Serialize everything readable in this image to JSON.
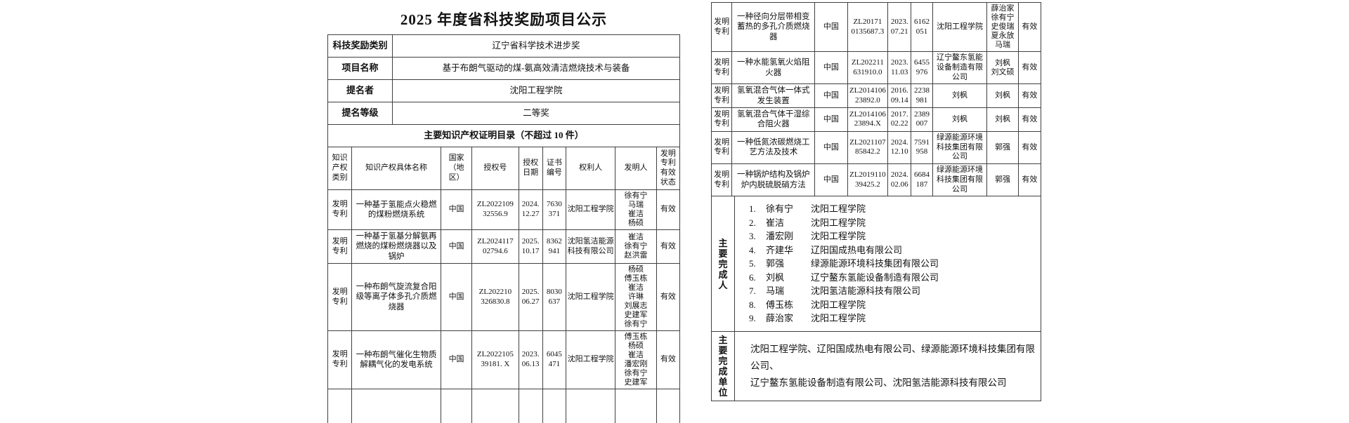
{
  "doc": {
    "title": "2025 年度省科技奖励项目公示"
  },
  "left": {
    "info_rows": [
      {
        "label": "科技奖励类别",
        "value": "辽宁省科学技术进步奖"
      },
      {
        "label": "项目名称",
        "value": "基于布朗气驱动的煤-氨高效清洁燃烧技术与装备"
      },
      {
        "label": "提名者",
        "value": "沈阳工程学院"
      },
      {
        "label": "提名等级",
        "value": "二等奖"
      }
    ],
    "section_title": "主要知识产权证明目录（不超过 10 件）",
    "col_headers": [
      [
        "知识",
        "产权",
        "类别"
      ],
      "知识产权具体名称",
      [
        "国家",
        "（地",
        "区）"
      ],
      "授权号",
      [
        "授权",
        "日期"
      ],
      [
        "证书",
        "编号"
      ],
      "权利人",
      "发明人",
      [
        "发明",
        "专利",
        "有效",
        "状态"
      ]
    ],
    "rows": [
      {
        "type": [
          "发明",
          "专利"
        ],
        "name": "一种基于氢能点火稳燃的煤粉燃烧系统",
        "country": "中国",
        "number": [
          "ZL2022109",
          "32556.9"
        ],
        "date": [
          "2024.",
          "12.27"
        ],
        "cert": [
          "7630",
          "371"
        ],
        "owner": "沈阳工程学院",
        "inventors": [
          "徐有宁",
          "马瑞",
          "崔洁",
          "杨硕"
        ],
        "status": "有效"
      },
      {
        "type": [
          "发明",
          "专利"
        ],
        "name": "一种基于氢基分解氨再燃烧的煤粉燃烧器以及锅炉",
        "country": "中国",
        "number": [
          "ZL2024117",
          "02794.6"
        ],
        "date": [
          "2025.",
          "10.17"
        ],
        "cert": [
          "8362",
          "941"
        ],
        "owner": "沈阳氢洁能源科技有限公司",
        "inventors": [
          "崔洁",
          "徐有宁",
          "赵洪雷"
        ],
        "status": "有效"
      },
      {
        "type": [
          "发明",
          "专利"
        ],
        "name": "一种布朗气旋流复合阳级等离子体多孔介质燃烧器",
        "country": "中国",
        "number": [
          "ZL202210",
          "326830.8"
        ],
        "date": [
          "2025.",
          "06.27"
        ],
        "cert": [
          "8030",
          "637"
        ],
        "owner": "沈阳工程学院",
        "inventors": [
          "杨硕",
          "傅玉栋",
          "崔洁",
          "许琳",
          "刘展志",
          "史建军",
          "徐有宁"
        ],
        "status": "有效"
      },
      {
        "type": [
          "发明",
          "专利"
        ],
        "name": "一种布朗气催化生物质解耦气化的发电系统",
        "country": "中国",
        "number": [
          "ZL2022105",
          "39181. X"
        ],
        "date": [
          "2023.",
          "06.13"
        ],
        "cert": [
          "6045",
          "471"
        ],
        "owner": "沈阳工程学院",
        "inventors": [
          "傅玉栋",
          "杨硕",
          "崔洁",
          "潘宏刚",
          "徐有宁",
          "史建军"
        ],
        "status": "有效"
      }
    ]
  },
  "right": {
    "rows": [
      {
        "type": [
          "发明",
          "专利"
        ],
        "name": "一种径向分层带相变蓄热的多孔介质燃烧器",
        "country": "中国",
        "number": [
          "ZL20171",
          "0135687.3"
        ],
        "date": [
          "2023.",
          "07.21"
        ],
        "cert": [
          "6162",
          "051"
        ],
        "owner": "沈阳工程学院",
        "inventors": [
          "薛治家",
          "徐有宁",
          "史俊瑞",
          "夏永放",
          "马瑞"
        ],
        "status": "有效"
      },
      {
        "type": [
          "发明",
          "专利"
        ],
        "name": "一种水能氢氧火焰阻火器",
        "country": "中国",
        "number": [
          "ZL202211",
          "631910.0"
        ],
        "date": [
          "2023.",
          "11.03"
        ],
        "cert": [
          "6455",
          "976"
        ],
        "owner": "辽宁鳌东氢能设备制造有限公司",
        "inventors": [
          "刘枫",
          "刘文硕"
        ],
        "status": "有效"
      },
      {
        "type": [
          "发明",
          "专利"
        ],
        "name": "氢氧混合气体一体式发生装置",
        "country": "中国",
        "number": [
          "ZL2014106",
          "23892.0"
        ],
        "date": [
          "2016.",
          "09.14"
        ],
        "cert": [
          "2238",
          "981"
        ],
        "owner": "刘枫",
        "inventors": [
          "刘枫"
        ],
        "status": "有效"
      },
      {
        "type": [
          "发明",
          "专利"
        ],
        "name": "氢氧混合气体干湿综合阻火器",
        "country": "中国",
        "number": [
          "ZL2014106",
          "23894.X"
        ],
        "date": [
          "2017.",
          "02.22"
        ],
        "cert": [
          "2389",
          "007"
        ],
        "owner": "刘枫",
        "inventors": [
          "刘枫"
        ],
        "status": "有效"
      },
      {
        "type": [
          "发明",
          "专利"
        ],
        "name": "一种低氮浓碳燃烧工艺方法及技术",
        "country": "中国",
        "number": [
          "ZL2021107",
          "85842.2"
        ],
        "date": [
          "2024.",
          "12.10"
        ],
        "cert": [
          "7591",
          "958"
        ],
        "owner": "绿源能源环境科技集团有限公司",
        "inventors": [
          "郭强"
        ],
        "status": "有效"
      },
      {
        "type": [
          "发明",
          "专利"
        ],
        "name": "一种锅炉结构及锅炉炉内脱硫脱硝方法",
        "country": "中国",
        "number": [
          "ZL2019110",
          "39425.2"
        ],
        "date": [
          "2024.",
          "02.06"
        ],
        "cert": [
          "6684",
          "187"
        ],
        "owner": "绿源能源环境科技集团有限公司",
        "inventors": [
          "郭强"
        ],
        "status": "有效"
      }
    ],
    "completers": {
      "label": [
        "主",
        "要",
        "完",
        "成",
        "人"
      ],
      "items": [
        {
          "num": "1.",
          "name": "徐有宁",
          "org": "沈阳工程学院"
        },
        {
          "num": "2.",
          "name": "崔洁",
          "org": "沈阳工程学院"
        },
        {
          "num": "3.",
          "name": "潘宏刚",
          "org": "沈阳工程学院"
        },
        {
          "num": "4.",
          "name": "齐建华",
          "org": "辽阳国成热电有限公司"
        },
        {
          "num": "5.",
          "name": "郭强",
          "org": "绿源能源环境科技集团有限公司"
        },
        {
          "num": "6.",
          "name": "刘枫",
          "org": "辽宁鳌东氢能设备制造有限公司"
        },
        {
          "num": "7.",
          "name": "马瑞",
          "org": "沈阳氢洁能源科技有限公司"
        },
        {
          "num": "8.",
          "name": "傅玉栋",
          "org": "沈阳工程学院"
        },
        {
          "num": "9.",
          "name": "薛治家",
          "org": "沈阳工程学院"
        }
      ]
    },
    "units": {
      "label": [
        "主",
        "要",
        "完",
        "成",
        "单",
        "位"
      ],
      "lines": [
        "沈阳工程学院、辽阳国成热电有限公司、绿源能源环境科技集团有限公司、",
        "辽宁鳌东氢能设备制造有限公司、沈阳氢洁能源科技有限公司"
      ]
    }
  }
}
